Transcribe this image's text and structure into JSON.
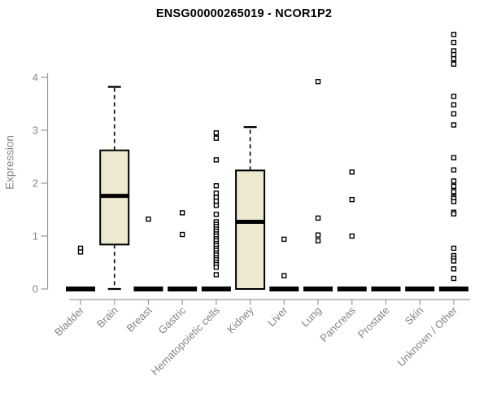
{
  "chart_data": {
    "type": "boxplot",
    "title": "ENSG00000265019 - NCOR1P2",
    "ylabel": "Expression",
    "xlabel": "",
    "ylim": [
      0,
      4.9
    ],
    "yticks": [
      0,
      1,
      2,
      3,
      4
    ],
    "grid": false,
    "legend": "none",
    "colors": {
      "box_fill": "#EDE8D0",
      "box_stroke": "#000000",
      "axis": "#9A9A9A",
      "tick_label": "#848484",
      "title": "#000000",
      "background": "#FFFFFF"
    },
    "categories": [
      "Bladder",
      "Brain",
      "Breast",
      "Gastric",
      "Hematopoietic cells",
      "Kidney",
      "Liver",
      "Lung",
      "Pancreas",
      "Prostate",
      "Skin",
      "Unknown / Other"
    ],
    "series": [
      {
        "category": "Bladder",
        "q1": 0,
        "median": 0,
        "q3": 0,
        "whisker_low": 0,
        "whisker_high": 0,
        "outliers": [
          0.77,
          0.7
        ]
      },
      {
        "category": "Brain",
        "q1": 0.84,
        "median": 1.76,
        "q3": 2.62,
        "whisker_low": 0,
        "whisker_high": 3.82,
        "outliers": []
      },
      {
        "category": "Breast",
        "q1": 0,
        "median": 0,
        "q3": 0,
        "whisker_low": 0,
        "whisker_high": 0,
        "outliers": [
          1.32
        ]
      },
      {
        "category": "Gastric",
        "q1": 0,
        "median": 0,
        "q3": 0,
        "whisker_low": 0,
        "whisker_high": 0,
        "outliers": [
          1.44,
          1.03
        ]
      },
      {
        "category": "Hematopoietic cells",
        "q1": 0,
        "median": 0,
        "q3": 0,
        "whisker_low": 0,
        "whisker_high": 0,
        "outliers": [
          2.95,
          2.85,
          2.44,
          1.95,
          1.81,
          1.73,
          1.66,
          1.58,
          1.41,
          1.27,
          1.22,
          1.18,
          1.13,
          1.09,
          1.04,
          1.0,
          0.95,
          0.91,
          0.86,
          0.82,
          0.77,
          0.73,
          0.68,
          0.64,
          0.59,
          0.55,
          0.5,
          0.46,
          0.41,
          0.27
        ]
      },
      {
        "category": "Kidney",
        "q1": 0,
        "median": 1.27,
        "q3": 2.24,
        "whisker_low": 0,
        "whisker_high": 3.06,
        "outliers": []
      },
      {
        "category": "Liver",
        "q1": 0,
        "median": 0,
        "q3": 0,
        "whisker_low": 0,
        "whisker_high": 0,
        "outliers": [
          0.94,
          0.25
        ]
      },
      {
        "category": "Lung",
        "q1": 0,
        "median": 0,
        "q3": 0,
        "whisker_low": 0,
        "whisker_high": 0,
        "outliers": [
          3.92,
          1.34,
          1.02,
          0.91
        ]
      },
      {
        "category": "Pancreas",
        "q1": 0,
        "median": 0,
        "q3": 0,
        "whisker_low": 0,
        "whisker_high": 0,
        "outliers": [
          2.21,
          1.69,
          1.0
        ]
      },
      {
        "category": "Prostate",
        "q1": 0,
        "median": 0,
        "q3": 0,
        "whisker_low": 0,
        "whisker_high": 0,
        "outliers": []
      },
      {
        "category": "Skin",
        "q1": 0,
        "median": 0,
        "q3": 0,
        "whisker_low": 0,
        "whisker_high": 0,
        "outliers": []
      },
      {
        "category": "Unknown / Other",
        "q1": 0,
        "median": 0,
        "q3": 0,
        "whisker_low": 0,
        "whisker_high": 0,
        "outliers": [
          4.81,
          4.66,
          4.5,
          4.43,
          4.35,
          4.25,
          3.64,
          3.48,
          3.31,
          3.1,
          2.48,
          2.25,
          2.04,
          1.94,
          1.84,
          1.74,
          1.71,
          1.65,
          1.45,
          1.42,
          0.77,
          0.63,
          0.58,
          0.53,
          0.38,
          0.2
        ]
      }
    ]
  }
}
